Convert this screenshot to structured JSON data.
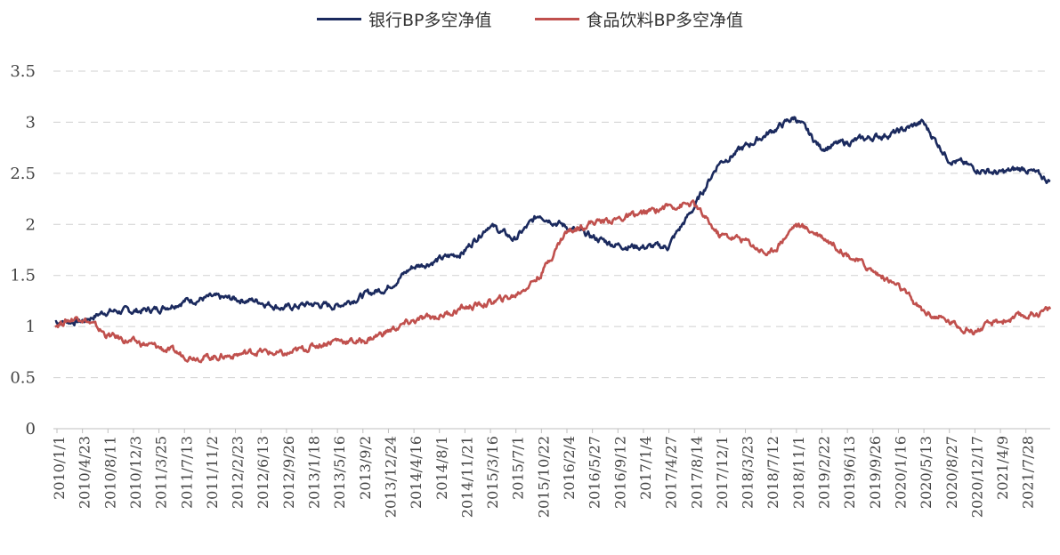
{
  "chart_data": {
    "type": "line",
    "title": "",
    "xlabel": "",
    "ylabel": "",
    "ylim": [
      0,
      3.5
    ],
    "yticks": [
      "0",
      "0.5",
      "1",
      "1.5",
      "2",
      "2.5",
      "3",
      "3.5"
    ],
    "grid": "horizontal-dashed",
    "legend_position": "top-center",
    "x_tick_labels": [
      "2010/1/1",
      "2010/4/23",
      "2010/8/11",
      "2010/12/3",
      "2011/3/25",
      "2011/7/13",
      "2011/11/2",
      "2012/2/23",
      "2012/6/13",
      "2012/9/26",
      "2013/1/18",
      "2013/5/16",
      "2013/9/2",
      "2013/12/24",
      "2014/4/16",
      "2014/8/1",
      "2014/11/21",
      "2015/3/16",
      "2015/7/1",
      "2015/10/22",
      "2016/2/4",
      "2016/5/27",
      "2016/9/12",
      "2017/1/4",
      "2017/4/27",
      "2017/8/14",
      "2017/12/1",
      "2018/3/23",
      "2018/7/12",
      "2018/11/1",
      "2019/2/22",
      "2019/6/13",
      "2019/9/26",
      "2020/1/16",
      "2020/5/13",
      "2020/8/27",
      "2020/12/17",
      "2021/4/9",
      "2021/7/28"
    ],
    "x": [
      "2010/1/1",
      "2010/4/23",
      "2010/8/11",
      "2010/12/3",
      "2011/3/25",
      "2011/7/13",
      "2011/11/2",
      "2012/2/23",
      "2012/6/13",
      "2012/9/26",
      "2013/1/18",
      "2013/5/16",
      "2013/9/2",
      "2013/12/24",
      "2014/4/16",
      "2014/8/1",
      "2014/11/21",
      "2015/3/16",
      "2015/7/1",
      "2015/10/22",
      "2016/2/4",
      "2016/5/27",
      "2016/9/12",
      "2017/1/4",
      "2017/4/27",
      "2017/8/14",
      "2017/12/1",
      "2018/3/23",
      "2018/7/12",
      "2018/11/1",
      "2019/2/22",
      "2019/6/13",
      "2019/9/26",
      "2020/1/16",
      "2020/5/13",
      "2020/8/27",
      "2020/12/17",
      "2021/4/9",
      "2021/7/28",
      "2021/9/30"
    ],
    "series": [
      {
        "name": "银行BP多空净值",
        "color": "#1b2a5e",
        "values": [
          1.05,
          1.05,
          1.15,
          1.15,
          1.17,
          1.25,
          1.28,
          1.27,
          1.25,
          1.18,
          1.22,
          1.2,
          1.3,
          1.38,
          1.58,
          1.65,
          1.73,
          2.0,
          1.85,
          2.1,
          1.98,
          1.88,
          1.8,
          1.78,
          1.78,
          2.15,
          2.6,
          2.75,
          2.9,
          3.05,
          2.75,
          2.8,
          2.85,
          2.9,
          3.0,
          2.65,
          2.55,
          2.5,
          2.55,
          2.42
        ]
      },
      {
        "name": "食品饮料BP多空净值",
        "color": "#c0504d",
        "values": [
          1.02,
          1.1,
          0.92,
          0.85,
          0.8,
          0.72,
          0.7,
          0.72,
          0.76,
          0.72,
          0.8,
          0.87,
          0.85,
          0.95,
          1.05,
          1.1,
          1.18,
          1.23,
          1.3,
          1.5,
          1.92,
          2.02,
          2.05,
          2.1,
          2.18,
          2.2,
          1.9,
          1.85,
          1.7,
          2.0,
          1.9,
          1.72,
          1.55,
          1.4,
          1.15,
          1.05,
          0.95,
          1.05,
          1.1,
          1.17
        ]
      }
    ]
  }
}
